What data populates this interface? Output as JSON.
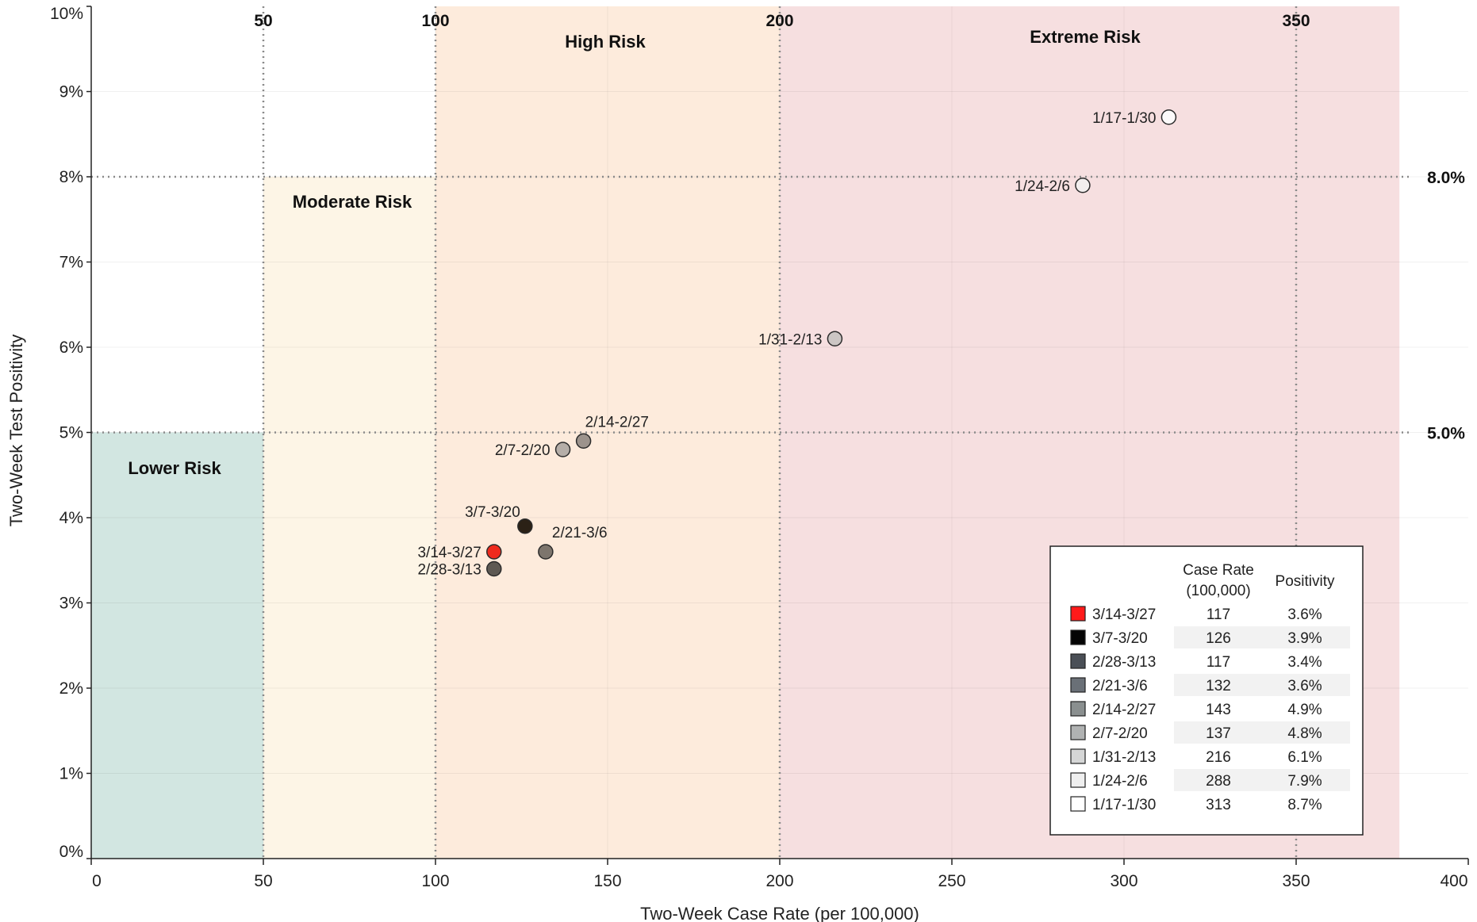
{
  "chart_data": {
    "type": "scatter",
    "xlabel": "Two-Week Case Rate (per 100,000)",
    "ylabel": "Two-Week Test Positivity",
    "xlim": [
      0,
      400
    ],
    "ylim": [
      0,
      10
    ],
    "x_ticks": [
      "0",
      "50",
      "100",
      "150",
      "200",
      "250",
      "300",
      "350",
      "400"
    ],
    "y_ticks": [
      "0%",
      "1%",
      "2%",
      "3%",
      "4%",
      "5%",
      "6%",
      "7%",
      "8%",
      "9%",
      "10%"
    ],
    "top_ticks": [
      "50",
      "100",
      "200",
      "350"
    ],
    "grid": true,
    "risk_zones": [
      {
        "label": "Lower Risk",
        "x_range": [
          0,
          50
        ],
        "y_range": [
          0,
          5
        ],
        "color": "#d2e6e1"
      },
      {
        "label": "Moderate Risk",
        "x_range": [
          50,
          100
        ],
        "y_range": [
          0,
          8
        ],
        "color": "#fdf5e6"
      },
      {
        "label": "High Risk",
        "x_range": [
          100,
          200
        ],
        "y_range": [
          0,
          10
        ],
        "color": "#fdebdc"
      },
      {
        "label": "Extreme Risk",
        "x_range": [
          200,
          380
        ],
        "y_range": [
          0,
          10
        ],
        "color": "#f6dfe0"
      }
    ],
    "reference_lines": {
      "vertical": [
        50,
        100,
        200,
        350
      ],
      "horizontal": [
        {
          "value": 8,
          "label": "8.0%"
        },
        {
          "value": 5,
          "label": "5.0%"
        }
      ]
    },
    "points": [
      {
        "label": "3/14-3/27",
        "x": 117,
        "y": 3.6,
        "color": "#ef2a1d"
      },
      {
        "label": "3/7-3/20",
        "x": 126,
        "y": 3.9,
        "color": "#2b2116"
      },
      {
        "label": "2/28-3/13",
        "x": 117,
        "y": 3.4,
        "color": "#5e5953"
      },
      {
        "label": "2/21-3/6",
        "x": 132,
        "y": 3.6,
        "color": "#7d756d"
      },
      {
        "label": "2/14-2/27",
        "x": 143,
        "y": 4.9,
        "color": "#9c938c"
      },
      {
        "label": "2/7-2/20",
        "x": 137,
        "y": 4.8,
        "color": "#b5aea8"
      },
      {
        "label": "1/31-2/13",
        "x": 216,
        "y": 6.1,
        "color": "#ccc6c4"
      },
      {
        "label": "1/24-2/6",
        "x": 288,
        "y": 7.9,
        "color": "#f2eeee"
      },
      {
        "label": "1/17-1/30",
        "x": 313,
        "y": 8.7,
        "color": "#fcfafa"
      }
    ],
    "legend": {
      "placement": "bottom-right",
      "header_case_rate": "Case Rate",
      "header_case_rate_sub": "(100,000)",
      "header_positivity": "Positivity",
      "rows": [
        {
          "label": "3/14-3/27",
          "case_rate": "117",
          "positivity": "3.6%",
          "swatch": "#ff1a1a"
        },
        {
          "label": "3/7-3/20",
          "case_rate": "126",
          "positivity": "3.9%",
          "swatch": "#050505"
        },
        {
          "label": "2/28-3/13",
          "case_rate": "117",
          "positivity": "3.4%",
          "swatch": "#4a4f56"
        },
        {
          "label": "2/21-3/6",
          "case_rate": "132",
          "positivity": "3.6%",
          "swatch": "#6a7077"
        },
        {
          "label": "2/14-2/27",
          "case_rate": "143",
          "positivity": "4.9%",
          "swatch": "#8a8f8f"
        },
        {
          "label": "2/7-2/20",
          "case_rate": "137",
          "positivity": "4.8%",
          "swatch": "#b0b2b2"
        },
        {
          "label": "1/31-2/13",
          "case_rate": "216",
          "positivity": "6.1%",
          "swatch": "#d5d6d6"
        },
        {
          "label": "1/24-2/6",
          "case_rate": "288",
          "positivity": "7.9%",
          "swatch": "#efefef"
        },
        {
          "label": "1/17-1/30",
          "case_rate": "313",
          "positivity": "8.7%",
          "swatch": "#ffffff"
        }
      ]
    }
  }
}
